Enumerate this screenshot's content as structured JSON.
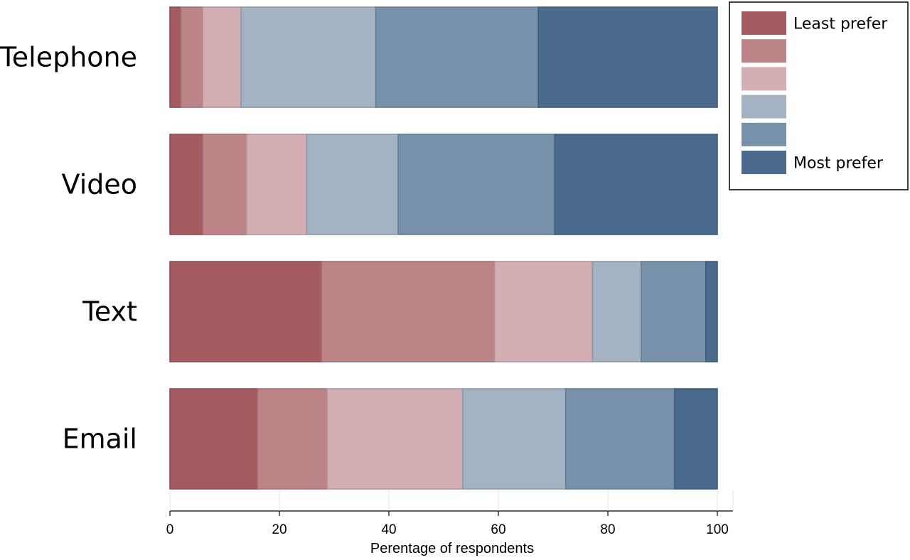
{
  "chart_data": {
    "type": "bar",
    "orientation": "horizontal",
    "stacked": true,
    "categories": [
      "Telephone",
      "Video",
      "Text",
      "Email"
    ],
    "series": [
      {
        "name": "Least prefer",
        "color": "#a45c60",
        "values": [
          2,
          6,
          27.7,
          16
        ]
      },
      {
        "color": "#bc8486",
        "values": [
          4,
          8,
          31.6,
          12.7
        ]
      },
      {
        "color": "#d3aeb2",
        "values": [
          7,
          11,
          17.9,
          24.8
        ]
      },
      {
        "color": "#a3b3c4",
        "values": [
          24.6,
          16.7,
          8.9,
          18.8
        ]
      },
      {
        "color": "#7891aa",
        "values": [
          29.7,
          28.6,
          11.8,
          19.9
        ]
      },
      {
        "name": "Most prefer",
        "color": "#4a6b8d",
        "values": [
          32.7,
          29.7,
          2.1,
          7.8
        ]
      }
    ],
    "xlabel": "Perentage of respondents",
    "xlim": [
      0,
      100
    ],
    "xticks": [
      0,
      20,
      40,
      60,
      80,
      100
    ],
    "grid": false,
    "legend_position": "top-right"
  }
}
